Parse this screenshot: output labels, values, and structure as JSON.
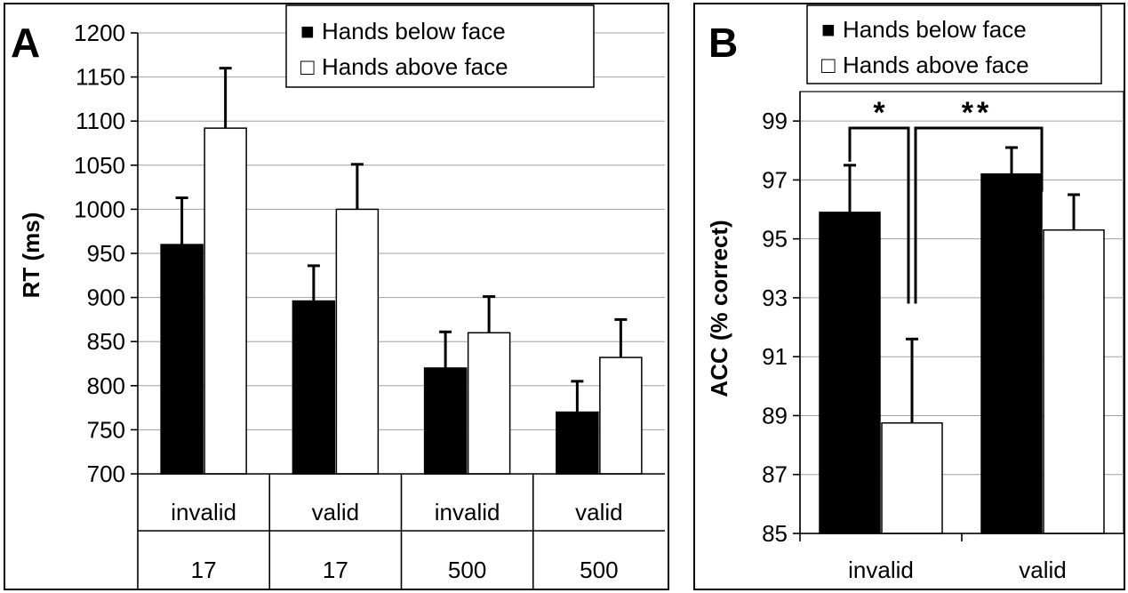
{
  "chart_data": [
    {
      "panel": "A",
      "type": "bar",
      "ylabel": "RT (ms)",
      "ylim": [
        700,
        1200
      ],
      "yticks": [
        700,
        750,
        800,
        850,
        900,
        950,
        1000,
        1050,
        1100,
        1150,
        1200
      ],
      "grid": true,
      "legend_position": "top-right",
      "categories": [
        {
          "row1": "invalid",
          "row2": "17"
        },
        {
          "row1": "valid",
          "row2": "17"
        },
        {
          "row1": "invalid",
          "row2": "500"
        },
        {
          "row1": "valid",
          "row2": "500"
        }
      ],
      "series": [
        {
          "name": "Hands below face",
          "color": "#000000",
          "values": [
            960,
            896,
            820,
            770
          ],
          "errors": [
            53,
            40,
            41,
            35
          ]
        },
        {
          "name": "Hands above face",
          "color": "#ffffff",
          "values": [
            1092,
            1000,
            860,
            832
          ],
          "errors": [
            68,
            51,
            41,
            43
          ]
        }
      ],
      "legend_symbols": [
        "■",
        "□"
      ]
    },
    {
      "panel": "B",
      "type": "bar",
      "ylabel": "ACC (% correct)",
      "ylim": [
        85,
        100
      ],
      "yticks": [
        85,
        87,
        89,
        91,
        93,
        95,
        97,
        99
      ],
      "grid": true,
      "legend_position": "top",
      "categories": [
        "invalid",
        "valid"
      ],
      "series": [
        {
          "name": "Hands below face",
          "color": "#000000",
          "values": [
            95.9,
            97.2
          ],
          "errors": [
            1.6,
            0.9
          ]
        },
        {
          "name": "Hands above face",
          "color": "#ffffff",
          "values": [
            88.75,
            95.3
          ],
          "errors": [
            2.85,
            1.2
          ]
        }
      ],
      "legend_symbols": [
        "■",
        "□"
      ],
      "annotations": [
        "*",
        "**"
      ]
    }
  ]
}
